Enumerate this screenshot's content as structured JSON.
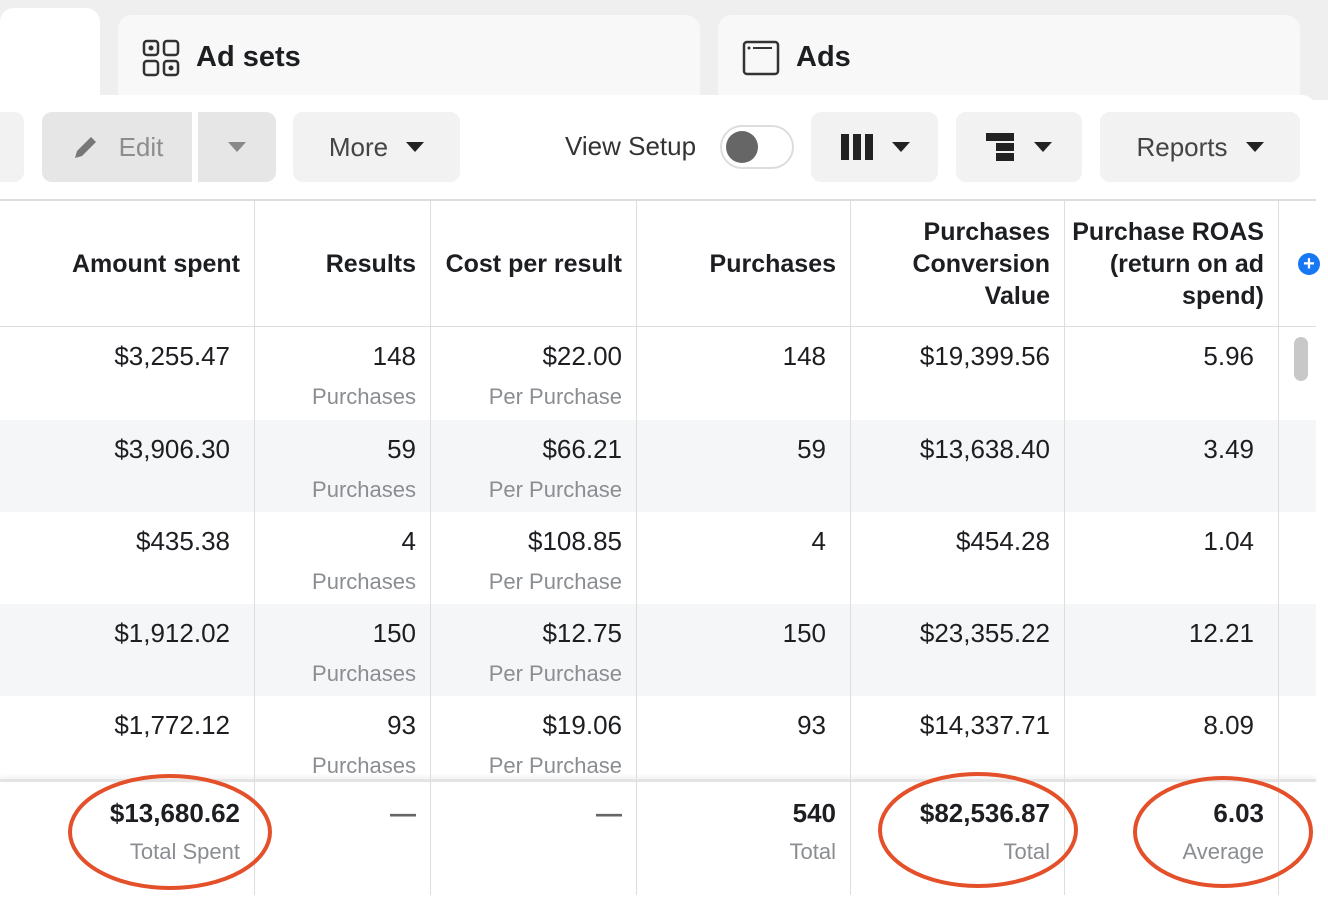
{
  "tabs": [
    {
      "label": ""
    },
    {
      "label": "Ad sets",
      "icon": "ad-sets-grid-icon"
    },
    {
      "label": "Ads",
      "icon": "ad-window-icon"
    }
  ],
  "toolbar": {
    "edit": "Edit",
    "more": "More",
    "view_setup": "View Setup",
    "view_setup_on": false,
    "reports": "Reports"
  },
  "table": {
    "headers": [
      "Amount spent",
      "Results",
      "Cost per result",
      "Purchases",
      "Purchases Conversion Value",
      "Purchase ROAS (return on ad spend)"
    ],
    "rows": [
      {
        "spent": "$3,255.47",
        "results": "148",
        "results_sub": "Purchases",
        "cpr": "$22.00",
        "cpr_sub": "Per Purchase",
        "purchases": "148",
        "value": "$19,399.56",
        "roas": "5.96"
      },
      {
        "spent": "$3,906.30",
        "results": "59",
        "results_sub": "Purchases",
        "cpr": "$66.21",
        "cpr_sub": "Per Purchase",
        "purchases": "59",
        "value": "$13,638.40",
        "roas": "3.49"
      },
      {
        "spent": "$435.38",
        "results": "4",
        "results_sub": "Purchases",
        "cpr": "$108.85",
        "cpr_sub": "Per Purchase",
        "purchases": "4",
        "value": "$454.28",
        "roas": "1.04"
      },
      {
        "spent": "$1,912.02",
        "results": "150",
        "results_sub": "Purchases",
        "cpr": "$12.75",
        "cpr_sub": "Per Purchase",
        "purchases": "150",
        "value": "$23,355.22",
        "roas": "12.21"
      },
      {
        "spent": "$1,772.12",
        "results": "93",
        "results_sub": "Purchases",
        "cpr": "$19.06",
        "cpr_sub": "Per Purchase",
        "purchases": "93",
        "value": "$14,337.71",
        "roas": "8.09"
      }
    ],
    "totals": {
      "spent": "$13,680.62",
      "spent_sub": "Total Spent",
      "results": "—",
      "cpr": "—",
      "purchases": "540",
      "purchases_sub": "Total",
      "value": "$82,536.87",
      "value_sub": "Total",
      "roas": "6.03",
      "roas_sub": "Average"
    }
  },
  "colors": {
    "highlight_circle": "#e4502a",
    "accent": "#1877f2",
    "alt_row": "#f5f6f7"
  }
}
